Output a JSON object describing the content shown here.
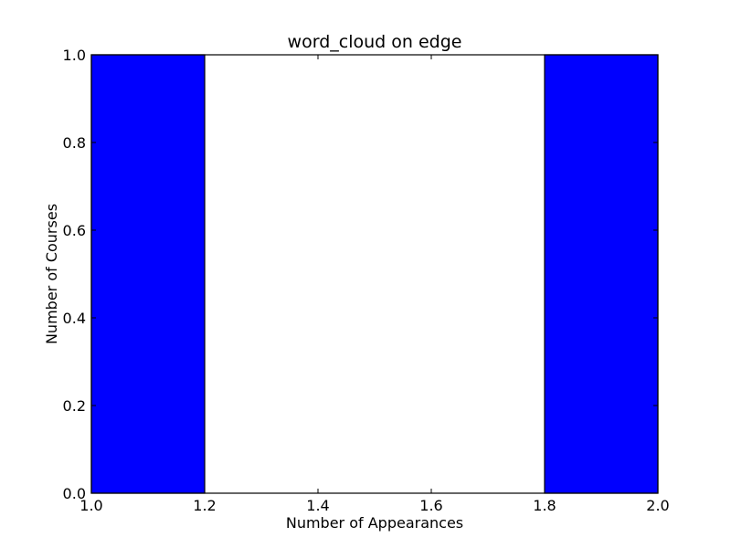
{
  "chart_data": {
    "type": "bar",
    "title": "word_cloud on edge",
    "xlabel": "Number of Appearances",
    "ylabel": "Number of Courses",
    "xlim": [
      1.0,
      2.0
    ],
    "ylim": [
      0.0,
      1.0
    ],
    "bars": [
      {
        "x_start": 1.0,
        "x_end": 1.2,
        "value": 1.0
      },
      {
        "x_start": 1.2,
        "x_end": 1.4,
        "value": 0.0
      },
      {
        "x_start": 1.4,
        "x_end": 1.6,
        "value": 0.0
      },
      {
        "x_start": 1.6,
        "x_end": 1.8,
        "value": 0.0
      },
      {
        "x_start": 1.8,
        "x_end": 2.0,
        "value": 1.0
      }
    ],
    "x_ticks": [
      "1.0",
      "1.2",
      "1.4",
      "1.6",
      "1.8",
      "2.0"
    ],
    "y_ticks": [
      "0.0",
      "0.2",
      "0.4",
      "0.6",
      "0.8",
      "1.0"
    ],
    "bar_color": "#0000ff",
    "grid": false,
    "legend": "none"
  }
}
